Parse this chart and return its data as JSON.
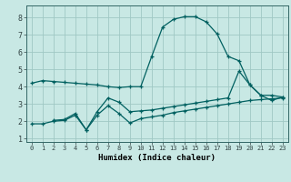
{
  "xlabel": "Humidex (Indice chaleur)",
  "bg_color": "#c8e8e4",
  "grid_color": "#a0c8c4",
  "line_color": "#006060",
  "xlim": [
    -0.5,
    23.5
  ],
  "ylim": [
    0.8,
    8.7
  ],
  "xticks": [
    0,
    1,
    2,
    3,
    4,
    5,
    6,
    7,
    8,
    9,
    10,
    11,
    12,
    13,
    14,
    15,
    16,
    17,
    18,
    19,
    20,
    21,
    22,
    23
  ],
  "yticks": [
    1,
    2,
    3,
    4,
    5,
    6,
    7,
    8
  ],
  "line1_x": [
    0,
    1,
    2,
    3,
    4,
    5,
    6,
    7,
    8,
    9,
    10,
    11,
    12,
    13,
    14,
    15,
    16,
    17,
    18,
    19,
    20,
    21,
    22,
    23
  ],
  "line1_y": [
    4.2,
    4.35,
    4.3,
    4.25,
    4.2,
    4.15,
    4.1,
    4.0,
    3.95,
    4.0,
    4.0,
    5.75,
    7.45,
    7.9,
    8.05,
    8.05,
    7.75,
    7.05,
    5.75,
    5.5,
    4.1,
    3.5,
    3.5,
    3.4
  ],
  "line2_x": [
    2,
    3,
    4,
    5,
    6,
    7,
    8,
    9,
    10,
    11,
    12,
    13,
    14,
    15,
    16,
    17,
    18,
    19,
    20,
    21,
    22,
    23
  ],
  "line2_y": [
    2.05,
    2.1,
    2.45,
    1.5,
    2.55,
    3.35,
    3.1,
    2.55,
    2.6,
    2.65,
    2.75,
    2.85,
    2.95,
    3.05,
    3.15,
    3.25,
    3.35,
    4.9,
    4.1,
    3.5,
    3.2,
    3.4
  ],
  "line3_x": [
    0,
    1,
    2,
    3,
    4,
    5,
    6,
    7,
    8,
    9,
    10,
    11,
    12,
    13,
    14,
    15,
    16,
    17,
    18,
    19,
    20,
    21,
    22,
    23
  ],
  "line3_y": [
    1.85,
    1.85,
    2.0,
    2.05,
    2.35,
    1.5,
    2.35,
    2.9,
    2.45,
    1.9,
    2.15,
    2.25,
    2.35,
    2.5,
    2.6,
    2.7,
    2.8,
    2.9,
    3.0,
    3.1,
    3.2,
    3.25,
    3.3,
    3.35
  ]
}
